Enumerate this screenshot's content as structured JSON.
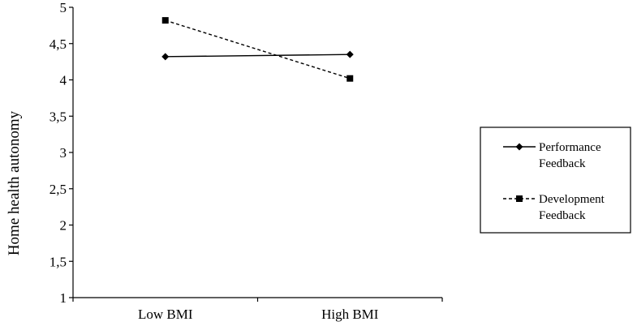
{
  "chart_data": {
    "type": "line",
    "categories": [
      "Low BMI",
      "High BMI"
    ],
    "series": [
      {
        "name": "Performance Feedback",
        "name_lines": [
          "Performance",
          "Feedback"
        ],
        "values": [
          4.32,
          4.35
        ],
        "marker": "diamond",
        "line_style": "solid",
        "color": "#000000"
      },
      {
        "name": "Development Feedback",
        "name_lines": [
          "Development",
          "Feedback"
        ],
        "values": [
          4.82,
          4.02
        ],
        "marker": "square",
        "line_style": "dashed",
        "color": "#000000"
      }
    ],
    "title": "",
    "xlabel": "",
    "ylabel": "Home health autonomy",
    "ylim": [
      1,
      5
    ],
    "yticks": [
      1,
      1.5,
      2,
      2.5,
      3,
      3.5,
      4,
      4.5,
      5
    ],
    "ytick_labels": [
      "1",
      "1,5",
      "2",
      "2,5",
      "3",
      "3,5",
      "4",
      "4,5",
      "5"
    ],
    "grid": false,
    "legend_position": "right"
  }
}
